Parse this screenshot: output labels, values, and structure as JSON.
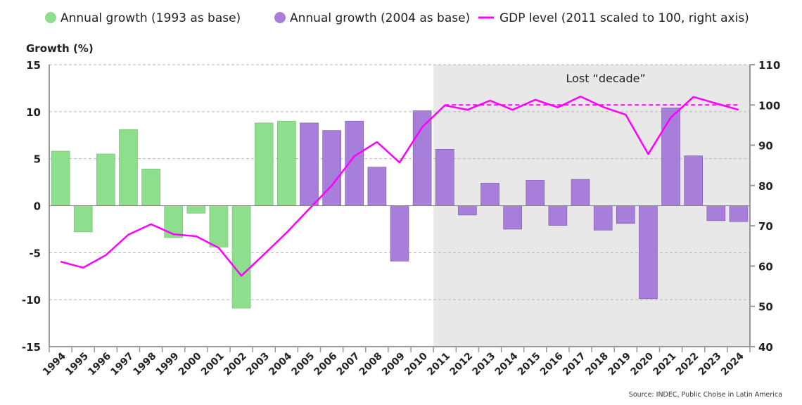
{
  "chart_data": {
    "type": "bar",
    "title": "",
    "ylabel": "Growth (%)",
    "y2label": "",
    "ylim": [
      -15,
      15
    ],
    "y2lim": [
      40,
      110
    ],
    "yticks": [
      15,
      10,
      5,
      0,
      -5,
      -10,
      -15
    ],
    "y2ticks": [
      110,
      100,
      90,
      80,
      70,
      60,
      50,
      40
    ],
    "grid": "horizontal dashed",
    "legend_placement": "top",
    "categories": [
      "1994",
      "1995",
      "1996",
      "1997",
      "1998",
      "1999",
      "2000",
      "2001",
      "2002",
      "2003",
      "2004",
      "2005",
      "2006",
      "2007",
      "2008",
      "2009",
      "2010",
      "2011",
      "2012",
      "2013",
      "2014",
      "2015",
      "2016",
      "2017",
      "2018",
      "2019",
      "2020",
      "2021",
      "2022",
      "2023",
      "2024"
    ],
    "series": [
      {
        "name": "Annual growth (1993 as base)",
        "type": "bar",
        "color": "#8ddf8d",
        "axis": "left",
        "values": [
          5.8,
          -2.8,
          5.5,
          8.1,
          3.9,
          -3.4,
          -0.8,
          -4.4,
          -10.9,
          8.8,
          9.0,
          null,
          null,
          null,
          null,
          null,
          null,
          null,
          null,
          null,
          null,
          null,
          null,
          null,
          null,
          null,
          null,
          null,
          null,
          null,
          null
        ]
      },
      {
        "name": "Annual growth (2004 as base)",
        "type": "bar",
        "color": "#a77fda",
        "axis": "left",
        "values": [
          null,
          null,
          null,
          null,
          null,
          null,
          null,
          null,
          null,
          null,
          null,
          8.8,
          8.0,
          9.0,
          4.1,
          -5.9,
          10.1,
          6.0,
          -1.0,
          2.4,
          -2.5,
          2.7,
          -2.1,
          2.8,
          -2.6,
          -1.9,
          -9.9,
          10.4,
          5.3,
          -1.6,
          -1.7
        ]
      },
      {
        "name": "GDP level (2011 scaled to 100, right axis)",
        "type": "line",
        "color": "#ff00ff",
        "axis": "right",
        "values": [
          61.1,
          59.6,
          62.7,
          67.8,
          70.4,
          67.9,
          67.4,
          64.5,
          57.6,
          62.9,
          68.3,
          74.2,
          80.0,
          87.3,
          90.8,
          85.7,
          94.5,
          99.9,
          98.8,
          101.1,
          98.8,
          101.3,
          99.4,
          102.1,
          99.5,
          97.6,
          87.8,
          96.9,
          102.0,
          100.4,
          98.8
        ]
      }
    ],
    "reference_line": {
      "axis": "right",
      "value": 100,
      "from": "2011",
      "to": "2024",
      "style": "dashed",
      "color": "#ff00ff"
    },
    "shaded_region": {
      "from": "2011",
      "to": "2024",
      "label": "Lost “decade”",
      "color": "#e8e8e8"
    },
    "source": "Source: INDEC, Public Choise in Latin America"
  }
}
